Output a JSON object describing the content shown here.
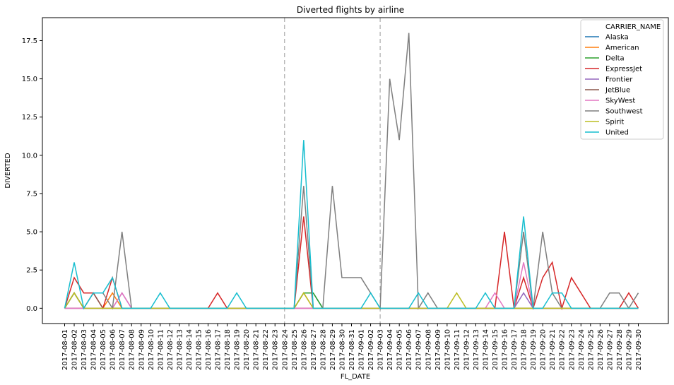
{
  "chart_data": {
    "type": "line",
    "title": "Diverted flights by airline",
    "xlabel": "FL_DATE",
    "ylabel": "DIVERTED",
    "ylim": [
      -1,
      19
    ],
    "yticks": [
      0.0,
      2.5,
      5.0,
      7.5,
      10.0,
      12.5,
      15.0,
      17.5
    ],
    "ytick_labels": [
      "0.0",
      "2.5",
      "5.0",
      "7.5",
      "10.0",
      "12.5",
      "15.0",
      "17.5"
    ],
    "x": [
      "2017-08-01",
      "2017-08-02",
      "2017-08-03",
      "2017-08-04",
      "2017-08-05",
      "2017-08-06",
      "2017-08-07",
      "2017-08-08",
      "2017-08-09",
      "2017-08-10",
      "2017-08-11",
      "2017-08-12",
      "2017-08-13",
      "2017-08-14",
      "2017-08-15",
      "2017-08-16",
      "2017-08-17",
      "2017-08-18",
      "2017-08-19",
      "2017-08-20",
      "2017-08-21",
      "2017-08-22",
      "2017-08-23",
      "2017-08-24",
      "2017-08-25",
      "2017-08-26",
      "2017-08-27",
      "2017-08-28",
      "2017-08-29",
      "2017-08-30",
      "2017-08-31",
      "2017-09-01",
      "2017-09-02",
      "2017-09-03",
      "2017-09-04",
      "2017-09-05",
      "2017-09-06",
      "2017-09-07",
      "2017-09-08",
      "2017-09-09",
      "2017-09-10",
      "2017-09-11",
      "2017-09-12",
      "2017-09-13",
      "2017-09-14",
      "2017-09-15",
      "2017-09-16",
      "2017-09-17",
      "2017-09-18",
      "2017-09-19",
      "2017-09-20",
      "2017-09-21",
      "2017-09-22",
      "2017-09-23",
      "2017-09-24",
      "2017-09-25",
      "2017-09-26",
      "2017-09-27",
      "2017-09-28",
      "2017-09-29",
      "2017-09-30"
    ],
    "vlines": [
      "2017-08-24",
      "2017-09-03"
    ],
    "legend": {
      "title": "CARRIER_NAME",
      "placement": "top-right"
    },
    "grid": false,
    "series": [
      {
        "name": "Alaska",
        "color": "#1f77b4",
        "values": {
          "2017-08-01": 0,
          "2017-08-02": 1,
          "2017-08-03": 0,
          "2017-08-12": 0,
          "2017-08-24": 0,
          "2017-08-25": 0,
          "2017-08-26": 1,
          "2017-08-27": 1,
          "2017-08-28": 0,
          "2017-09-30": 0
        }
      },
      {
        "name": "American",
        "color": "#ff7f0e",
        "values": {
          "2017-08-01": 0,
          "2017-08-02": 1,
          "2017-08-03": 0,
          "2017-08-05": 0,
          "2017-08-06": 1,
          "2017-08-07": 0,
          "2017-08-24": 0,
          "2017-08-25": 0,
          "2017-08-26": 1,
          "2017-08-27": 0,
          "2017-09-30": 0
        }
      },
      {
        "name": "Delta",
        "color": "#2ca02c",
        "values": {
          "2017-08-01": 0,
          "2017-08-02": 1,
          "2017-08-03": 0,
          "2017-08-25": 0,
          "2017-08-26": 1,
          "2017-08-27": 1,
          "2017-08-28": 0,
          "2017-09-30": 0
        }
      },
      {
        "name": "ExpressJet",
        "color": "#d62728",
        "values": {
          "2017-08-01": 0,
          "2017-08-02": 2,
          "2017-08-03": 1,
          "2017-08-04": 1,
          "2017-08-05": 0,
          "2017-08-06": 2,
          "2017-08-07": 0,
          "2017-08-08": 0,
          "2017-08-16": 0,
          "2017-08-17": 1,
          "2017-08-18": 0,
          "2017-08-25": 0,
          "2017-08-26": 6,
          "2017-08-27": 0,
          "2017-09-15": 0,
          "2017-09-16": 5,
          "2017-09-17": 0,
          "2017-09-18": 2,
          "2017-09-19": 0,
          "2017-09-20": 2,
          "2017-09-21": 3,
          "2017-09-22": 0,
          "2017-09-23": 2,
          "2017-09-24": 1,
          "2017-09-25": 0,
          "2017-09-28": 0,
          "2017-09-29": 1,
          "2017-09-30": 0
        }
      },
      {
        "name": "Frontier",
        "color": "#9467bd",
        "values": {
          "2017-08-01": 0,
          "2017-08-06": 0,
          "2017-08-07": 1,
          "2017-08-08": 0,
          "2017-09-17": 0,
          "2017-09-18": 1,
          "2017-09-19": 0,
          "2017-09-30": 0
        }
      },
      {
        "name": "JetBlue",
        "color": "#8c564b",
        "values": {
          "2017-08-01": 0,
          "2017-08-03": 0,
          "2017-08-04": 1,
          "2017-08-05": 0,
          "2017-08-20": 0,
          "2017-09-30": 0
        }
      },
      {
        "name": "SkyWest",
        "color": "#e377c2",
        "values": {
          "2017-08-01": 0,
          "2017-08-06": 0,
          "2017-08-07": 1,
          "2017-08-08": 0,
          "2017-09-14": 0,
          "2017-09-15": 1,
          "2017-09-16": 0,
          "2017-09-17": 0,
          "2017-09-18": 3,
          "2017-09-19": 0,
          "2017-09-30": 0
        }
      },
      {
        "name": "Southwest",
        "color": "#7f7f7f",
        "values": {
          "2017-08-01": 0,
          "2017-08-02": 1,
          "2017-08-03": 0,
          "2017-08-04": 1,
          "2017-08-05": 1,
          "2017-08-06": 0,
          "2017-08-07": 5,
          "2017-08-08": 0,
          "2017-08-25": 0,
          "2017-08-26": 8,
          "2017-08-27": 0,
          "2017-08-28": 0,
          "2017-08-29": 8,
          "2017-08-30": 2,
          "2017-08-31": 2,
          "2017-09-01": 2,
          "2017-09-02": 1,
          "2017-09-03": 0,
          "2017-09-04": 15,
          "2017-09-05": 11,
          "2017-09-06": 18,
          "2017-09-07": 0,
          "2017-09-08": 1,
          "2017-09-09": 0,
          "2017-09-17": 0,
          "2017-09-18": 5,
          "2017-09-19": 0,
          "2017-09-20": 5,
          "2017-09-21": 1,
          "2017-09-22": 0,
          "2017-09-26": 0,
          "2017-09-27": 1,
          "2017-09-28": 1,
          "2017-09-29": 0,
          "2017-09-30": 1
        }
      },
      {
        "name": "Spirit",
        "color": "#bcbd22",
        "values": {
          "2017-08-01": 0,
          "2017-08-02": 1,
          "2017-08-03": 0,
          "2017-08-24": 0,
          "2017-08-25": 0,
          "2017-08-26": 1,
          "2017-08-27": 0,
          "2017-09-10": 0,
          "2017-09-11": 1,
          "2017-09-12": 0,
          "2017-09-30": 0
        }
      },
      {
        "name": "United",
        "color": "#17becf",
        "values": {
          "2017-08-01": 0,
          "2017-08-02": 3,
          "2017-08-03": 0,
          "2017-08-04": 1,
          "2017-08-05": 1,
          "2017-08-06": 2,
          "2017-08-07": 0,
          "2017-08-08": 0,
          "2017-08-10": 0,
          "2017-08-11": 1,
          "2017-08-12": 0,
          "2017-08-18": 0,
          "2017-08-19": 1,
          "2017-08-20": 0,
          "2017-08-25": 0,
          "2017-08-26": 11,
          "2017-08-27": 0,
          "2017-09-01": 0,
          "2017-09-02": 1,
          "2017-09-03": 0,
          "2017-09-06": 0,
          "2017-09-07": 1,
          "2017-09-08": 0,
          "2017-09-13": 0,
          "2017-09-14": 1,
          "2017-09-15": 0,
          "2017-09-17": 0,
          "2017-09-18": 6,
          "2017-09-19": 0,
          "2017-09-21": 1,
          "2017-09-22": 1,
          "2017-09-23": 0,
          "2017-09-30": 0
        }
      }
    ]
  }
}
